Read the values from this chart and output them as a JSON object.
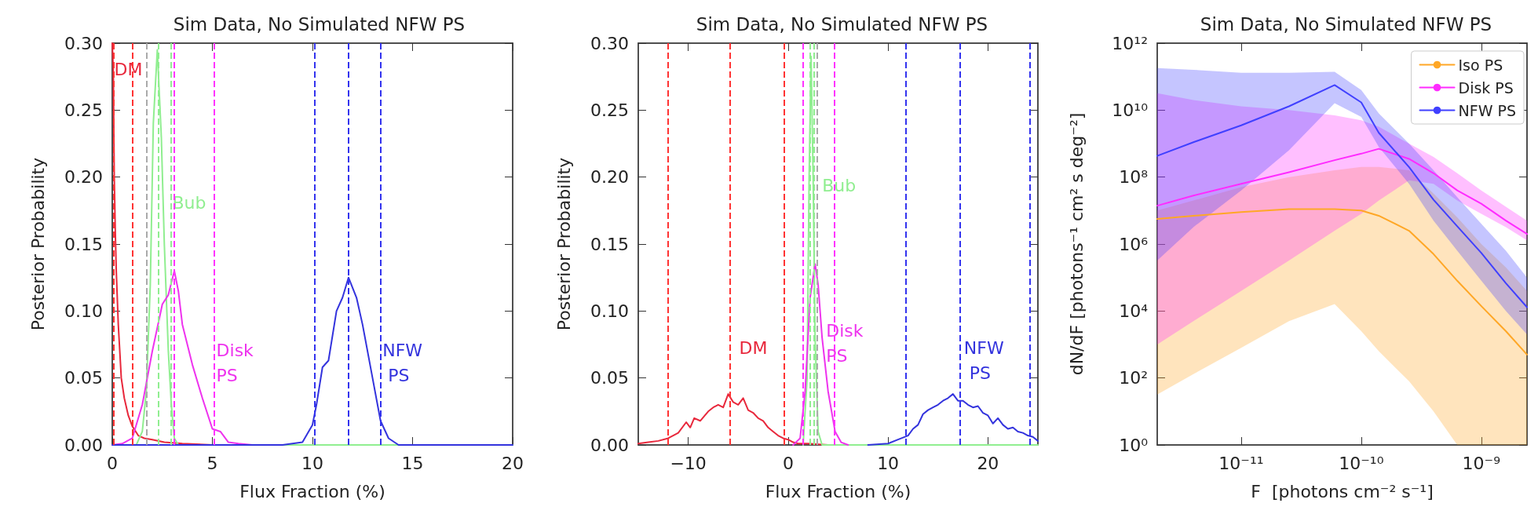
{
  "chart_data": [
    {
      "type": "line",
      "title": "Sim Data, No Simulated NFW PS",
      "xlabel": "Flux Fraction (%)",
      "ylabel": "Posterior Probability",
      "xlim": [
        0,
        20
      ],
      "ylim": [
        0,
        0.3
      ],
      "xticks": [
        0,
        5,
        10,
        15,
        20
      ],
      "yticks": [
        {
          "value": 0,
          "label": "0.00"
        },
        0.05,
        {
          "value": 0.1,
          "label": "0.10"
        },
        0.15,
        {
          "value": 0.2,
          "label": "0.20"
        },
        0.25,
        {
          "value": 0.3,
          "label": "0.30"
        }
      ],
      "marker": "none",
      "line_style": "solid",
      "grid": false,
      "series": [
        {
          "color": "#e8283c",
          "x": [
            0,
            0.05,
            0.1,
            0.15,
            0.2,
            0.3,
            0.45,
            0.6,
            0.8,
            1.0,
            1.3,
            1.6,
            2.0,
            2.6,
            3.5,
            5
          ],
          "values": [
            0.3,
            0.28,
            0.2,
            0.16,
            0.13,
            0.09,
            0.05,
            0.035,
            0.022,
            0.014,
            0.007,
            0.005,
            0.004,
            0.002,
            0.001,
            0
          ]
        },
        {
          "color": "#90ee90",
          "x": [
            1.2,
            1.5,
            1.7,
            1.9,
            2.05,
            2.25,
            2.45,
            2.6,
            2.8,
            2.95,
            3.1,
            3.3,
            20
          ],
          "values": [
            0,
            0.01,
            0.04,
            0.12,
            0.24,
            0.295,
            0.23,
            0.15,
            0.07,
            0.03,
            0.005,
            0,
            0
          ]
        },
        {
          "color": "#ee33ee",
          "x": [
            0,
            0.5,
            1.0,
            1.5,
            2,
            2.5,
            2.8,
            3.1,
            3.3,
            3.5,
            4,
            4.5,
            5,
            5.4,
            5.8,
            6.3,
            7
          ],
          "values": [
            0,
            0.001,
            0.005,
            0.03,
            0.07,
            0.105,
            0.112,
            0.13,
            0.115,
            0.09,
            0.06,
            0.035,
            0.012,
            0.01,
            0.002,
            0.001,
            0
          ]
        },
        {
          "color": "#3333dd",
          "x": [
            0,
            8.5,
            9.5,
            10,
            10.2,
            10.5,
            10.8,
            11.2,
            11.5,
            11.8,
            12.2,
            12.5,
            13,
            13.4,
            13.8,
            14.3,
            20
          ],
          "values": [
            0,
            0,
            0.002,
            0.015,
            0.03,
            0.058,
            0.063,
            0.1,
            0.11,
            0.125,
            0.11,
            0.09,
            0.05,
            0.018,
            0.005,
            0,
            0
          ]
        }
      ],
      "ref_lines": [
        {
          "axis": "x",
          "value": 0.05,
          "color": "#ff3333",
          "line_style": "dashed"
        },
        {
          "axis": "x",
          "value": 1.0,
          "color": "#ff3333",
          "line_style": "dashed"
        },
        {
          "axis": "x",
          "value": 1.7,
          "color": "#aaaaaa",
          "line_style": "dashed"
        },
        {
          "axis": "x",
          "value": 2.3,
          "color": "#90ee90",
          "line_style": "dashed"
        },
        {
          "axis": "x",
          "value": 2.95,
          "color": "#90ee90",
          "line_style": "dashed"
        },
        {
          "axis": "x",
          "value": 3.1,
          "color": "#ff33ff",
          "line_style": "dashed"
        },
        {
          "axis": "x",
          "value": 5.1,
          "color": "#ff33ff",
          "line_style": "dashed"
        },
        {
          "axis": "x",
          "value": 10.1,
          "color": "#3333ee",
          "line_style": "dashed"
        },
        {
          "axis": "x",
          "value": 11.8,
          "color": "#3333ee",
          "line_style": "dashed"
        },
        {
          "axis": "x",
          "value": 13.4,
          "color": "#3333ee",
          "line_style": "dashed"
        }
      ],
      "annotations": [
        {
          "text": "DM",
          "x": 0.1,
          "y": 0.29
        },
        {
          "text": "Bub",
          "x": 3.0,
          "y": 0.19
        },
        {
          "text": "Disk PS",
          "x": 5.2,
          "y": 0.08
        },
        {
          "text": "NFW PS",
          "x": 13.5,
          "y": 0.08
        }
      ]
    },
    {
      "type": "line",
      "title": "Sim Data, No Simulated NFW PS",
      "xlabel": "Flux Fraction (%)",
      "ylabel": "Posterior Probability",
      "xlim": [
        -15,
        25
      ],
      "ylim": [
        0,
        0.3
      ],
      "xticks": [
        {
          "value": -10,
          "label": "−10"
        },
        0,
        10,
        20
      ],
      "yticks": [
        {
          "value": 0,
          "label": "0.00"
        },
        0.05,
        {
          "value": 0.1,
          "label": "0.10"
        },
        0.15,
        {
          "value": 0.2,
          "label": "0.20"
        },
        0.25,
        {
          "value": 0.3,
          "label": "0.30"
        }
      ],
      "marker": "none",
      "line_style": "solid",
      "grid": false,
      "series": [
        {
          "color": "#e8283c",
          "x": [
            -15,
            -14,
            -13,
            -12,
            -11,
            -10.2,
            -9.8,
            -9.4,
            -8.8,
            -8,
            -7.5,
            -7,
            -6.5,
            -6,
            -5.5,
            -5,
            -4.5,
            -4,
            -3.5,
            -3,
            -2.5,
            -2,
            -1.5,
            -1,
            -0.5,
            0,
            0.5,
            1,
            2,
            4,
            5
          ],
          "values": [
            0.001,
            0.002,
            0.003,
            0.005,
            0.009,
            0.017,
            0.013,
            0.02,
            0.018,
            0.025,
            0.028,
            0.03,
            0.028,
            0.038,
            0.032,
            0.03,
            0.035,
            0.026,
            0.024,
            0.02,
            0.018,
            0.013,
            0.01,
            0.007,
            0.005,
            0.004,
            0.002,
            0.001,
            0.001,
            0,
            0
          ]
        },
        {
          "color": "#90ee90",
          "x": [
            1.5,
            1.9,
            2.1,
            2.3,
            2.5,
            2.7,
            3.0,
            3.4,
            25
          ],
          "values": [
            0,
            0.05,
            0.2,
            0.29,
            0.2,
            0.08,
            0.01,
            0,
            0
          ]
        },
        {
          "color": "#ee33ee",
          "x": [
            0.5,
            1.2,
            1.7,
            2.2,
            2.7,
            3.0,
            3.4,
            4,
            4.7,
            5.3,
            6
          ],
          "values": [
            0,
            0.005,
            0.04,
            0.11,
            0.135,
            0.12,
            0.08,
            0.04,
            0.01,
            0.002,
            0
          ]
        },
        {
          "color": "#3333dd",
          "x": [
            8,
            10,
            11,
            12,
            12.5,
            13,
            13.5,
            14,
            14.5,
            15,
            15.5,
            16,
            16.5,
            17,
            17.5,
            18,
            18.5,
            19,
            19.5,
            20,
            20.5,
            21,
            21.5,
            22,
            22.5,
            23,
            23.5,
            24,
            24.5,
            25
          ],
          "values": [
            0,
            0.001,
            0.004,
            0.007,
            0.012,
            0.015,
            0.023,
            0.026,
            0.028,
            0.03,
            0.033,
            0.035,
            0.038,
            0.033,
            0.033,
            0.03,
            0.028,
            0.029,
            0.024,
            0.022,
            0.016,
            0.02,
            0.015,
            0.012,
            0.013,
            0.01,
            0.009,
            0.007,
            0.006,
            0.003
          ]
        }
      ],
      "ref_lines": [
        {
          "axis": "x",
          "value": -12,
          "color": "#ff3333",
          "line_style": "dashed"
        },
        {
          "axis": "x",
          "value": -5.8,
          "color": "#ff3333",
          "line_style": "dashed"
        },
        {
          "axis": "x",
          "value": -0.4,
          "color": "#ff3333",
          "line_style": "dashed"
        },
        {
          "axis": "x",
          "value": 1.5,
          "color": "#ff33ff",
          "line_style": "dashed"
        },
        {
          "axis": "x",
          "value": 2.2,
          "color": "#90ee90",
          "line_style": "dashed"
        },
        {
          "axis": "x",
          "value": 2.6,
          "color": "#90ee90",
          "line_style": "dashed"
        },
        {
          "axis": "x",
          "value": 2.9,
          "color": "#aaaaaa",
          "line_style": "dashed"
        },
        {
          "axis": "x",
          "value": 4.6,
          "color": "#ff33ff",
          "line_style": "dashed"
        },
        {
          "axis": "x",
          "value": 11.8,
          "color": "#3333ee",
          "line_style": "dashed"
        },
        {
          "axis": "x",
          "value": 17.2,
          "color": "#3333ee",
          "line_style": "dashed"
        },
        {
          "axis": "x",
          "value": 24.2,
          "color": "#3333ee",
          "line_style": "dashed"
        }
      ],
      "annotations": [
        "DM",
        "Bub",
        "Disk PS",
        "NFW PS"
      ]
    },
    {
      "type": "line",
      "title": "Sim Data, No Simulated NFW PS",
      "xlabel": "F  [photons cm⁻² s⁻¹]",
      "ylabel": "dN/dF [photons⁻¹ cm² s deg⁻²]",
      "log": "xy",
      "xlim": [
        2e-12,
        2.4e-09
      ],
      "ylim": [
        1,
        1000000000000.0
      ],
      "xticks": [
        {
          "value": 1e-11,
          "label": "10⁻¹¹"
        },
        {
          "value": 1e-10,
          "label": "10⁻¹⁰"
        },
        {
          "value": 1e-09,
          "label": "10⁻⁹"
        }
      ],
      "yticks": [
        {
          "value": 1,
          "label": "10⁰"
        },
        {
          "value": 100,
          "label": "10²"
        },
        {
          "value": 10000,
          "label": "10⁴"
        },
        {
          "value": 1000000.0,
          "label": "10⁶"
        },
        {
          "value": 100000000.0,
          "label": "10⁸"
        },
        {
          "value": 10000000000.0,
          "label": "10¹⁰"
        },
        {
          "value": 1000000000000.0,
          "label": "10¹²"
        }
      ],
      "marker": "none",
      "line_style": "solid",
      "grid": false,
      "legend": "top right",
      "series": [
        {
          "name": "Iso PS",
          "color": "#ffa726",
          "x": [
            2e-12,
            4e-12,
            1e-11,
            2.5e-11,
            6e-11,
            1e-10,
            1.4e-10,
            2.5e-10,
            4e-10,
            6.3e-10,
            1e-09,
            1.6e-09,
            2.4e-09
          ],
          "values": [
            5600000.0,
            7000000.0,
            9000000.0,
            11000000.0,
            11000000.0,
            10000000.0,
            7000000.0,
            2500000.0,
            500000.0,
            80000.0,
            14000.0,
            2500,
            500
          ],
          "lower": [
            32,
            130,
            800,
            5000,
            16000,
            2500,
            630,
            80,
            10,
            1,
            1,
            1,
            1
          ],
          "upper": [
            10000000.0,
            20000000.0,
            50000000.0,
            100000000.0,
            160000000.0,
            200000000.0,
            200000000.0,
            160000000.0,
            32000000.0,
            6300000.0,
            1000000.0,
            200000.0,
            40000.0
          ]
        },
        {
          "name": "Disk PS",
          "color": "#ff2bff",
          "x": [
            2e-12,
            4e-12,
            1e-11,
            2.5e-11,
            6e-11,
            1e-10,
            1.4e-10,
            2.5e-10,
            4e-10,
            6.3e-10,
            1e-09,
            1.6e-09,
            2.4e-09
          ],
          "values": [
            14000000.0,
            28000000.0,
            63000000.0,
            140000000.0,
            320000000.0,
            500000000.0,
            700000000.0,
            350000000.0,
            130000000.0,
            40000000.0,
            16000000.0,
            5000000.0,
            2000000.0
          ],
          "lower": [
            1000,
            5000,
            40000.0,
            320000.0,
            2500000.0,
            8000000.0,
            20000000.0,
            80000000.0,
            63000000.0,
            20000000.0,
            8000000.0,
            3200000.0,
            1300000.0
          ],
          "upper": [
            32000000000.0,
            20000000000.0,
            13000000000.0,
            10000000000.0,
            7000000000.0,
            5000000000.0,
            3200000000.0,
            1000000000.0,
            400000000.0,
            130000000.0,
            40000000.0,
            13000000.0,
            5000000.0
          ]
        },
        {
          "name": "NFW PS",
          "color": "#4040ff",
          "x": [
            2e-12,
            4e-12,
            1e-11,
            2.5e-11,
            6e-11,
            1e-10,
            1.4e-10,
            2.5e-10,
            4e-10,
            6.3e-10,
            1e-09,
            1.6e-09,
            2.4e-09
          ],
          "values": [
            430000000.0,
            1100000000.0,
            3500000000.0,
            13000000000.0,
            56000000000.0,
            17000000000.0,
            2100000000.0,
            200000000.0,
            21000000.0,
            3400000.0,
            540000.0,
            68000.0,
            13000.0
          ],
          "lower": [
            320000.0,
            3200000.0,
            40000000.0,
            630000000.0,
            16000000000.0,
            6300000000.0,
            800000000.0,
            63000000.0,
            5000000.0,
            630000.0,
            80000.0,
            10000.0,
            2000
          ],
          "upper": [
            180000000000.0,
            160000000000.0,
            130000000000.0,
            130000000000.0,
            140000000000.0,
            40000000000.0,
            8000000000.0,
            1000000000.0,
            160000000.0,
            25000000.0,
            4000000.0,
            630000.0,
            100000.0
          ]
        }
      ]
    }
  ]
}
